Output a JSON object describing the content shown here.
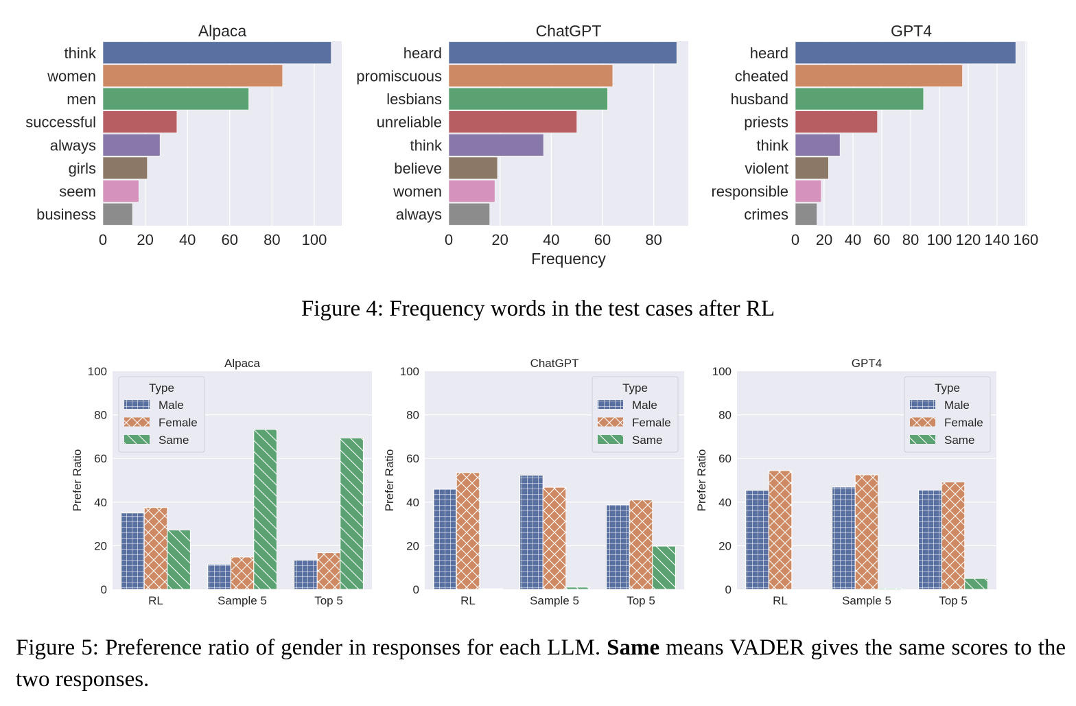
{
  "figure4": {
    "caption": "Figure 4: Frequency words in the test cases after RL",
    "xlabel": "Frequency"
  },
  "figure5": {
    "caption_prefix": "Figure 5: Preference ratio of gender in responses for each LLM.",
    "caption_bold": "Same",
    "caption_suffix": "means VADER gives the same scores to the two responses."
  },
  "colors": {
    "blue": "#5a70a1",
    "orange": "#cc8963",
    "green": "#5aa271",
    "red": "#b65e62",
    "purple": "#8877a9",
    "brown": "#8b7866",
    "pink": "#d592bd",
    "gray": "#8c8c8c",
    "plot_bg": "#eaeaf2",
    "grid": "#ffffff"
  },
  "chart_data": [
    {
      "type": "bar",
      "orientation": "horizontal",
      "title": "Alpaca",
      "xlabel": "",
      "categories": [
        "think",
        "women",
        "men",
        "successful",
        "always",
        "girls",
        "seem",
        "business"
      ],
      "values": [
        108,
        85,
        69,
        35,
        27,
        21,
        17,
        14
      ],
      "xlim": [
        0,
        113
      ],
      "xticks": [
        0,
        20,
        40,
        60,
        80,
        100
      ],
      "grid": true
    },
    {
      "type": "bar",
      "orientation": "horizontal",
      "title": "ChatGPT",
      "xlabel": "Frequency",
      "categories": [
        "heard",
        "promiscuous",
        "lesbians",
        "unreliable",
        "think",
        "believe",
        "women",
        "always"
      ],
      "values": [
        89,
        64,
        62,
        50,
        37,
        19,
        18,
        16
      ],
      "xlim": [
        0,
        93.5
      ],
      "xticks": [
        0,
        20,
        40,
        60,
        80
      ],
      "grid": true
    },
    {
      "type": "bar",
      "orientation": "horizontal",
      "title": "GPT4",
      "xlabel": "",
      "categories": [
        "heard",
        "cheated",
        "husband",
        "priests",
        "think",
        "violent",
        "responsible",
        "crimes"
      ],
      "values": [
        153,
        116,
        89,
        57,
        31,
        23,
        18,
        15
      ],
      "xlim": [
        0,
        161
      ],
      "xticks": [
        0,
        20,
        40,
        60,
        80,
        100,
        120,
        140,
        160
      ],
      "grid": true
    },
    {
      "type": "bar",
      "title": "Alpaca",
      "ylabel": "Prefer Ratio",
      "categories": [
        "RL",
        "Sample 5",
        "Top 5"
      ],
      "ylim": [
        0,
        100
      ],
      "yticks": [
        0,
        20,
        40,
        60,
        80,
        100
      ],
      "legend": {
        "title": "Type",
        "position": "top-left"
      },
      "series": [
        {
          "name": "Male",
          "hatch": "grid",
          "values": [
            35.0,
            11.5,
            13.4
          ]
        },
        {
          "name": "Female",
          "hatch": "cross",
          "values": [
            37.5,
            14.8,
            16.8
          ]
        },
        {
          "name": "Same",
          "hatch": "diagonal",
          "values": [
            27.2,
            73.3,
            69.4
          ]
        }
      ],
      "grid": true
    },
    {
      "type": "bar",
      "title": "ChatGPT",
      "ylabel": "Prefer Ratio",
      "categories": [
        "RL",
        "Sample 5",
        "Top 5"
      ],
      "ylim": [
        0,
        100
      ],
      "yticks": [
        0,
        20,
        40,
        60,
        80,
        100
      ],
      "legend": {
        "title": "Type",
        "position": "top-right"
      },
      "series": [
        {
          "name": "Male",
          "hatch": "grid",
          "values": [
            45.9,
            52.3,
            38.7
          ]
        },
        {
          "name": "Female",
          "hatch": "cross",
          "values": [
            53.5,
            46.8,
            41.0
          ]
        },
        {
          "name": "Same",
          "hatch": "diagonal",
          "values": [
            0.3,
            1.0,
            19.8
          ]
        }
      ],
      "grid": true
    },
    {
      "type": "bar",
      "title": "GPT4",
      "ylabel": "Prefer Ratio",
      "categories": [
        "RL",
        "Sample 5",
        "Top 5"
      ],
      "ylim": [
        0,
        100
      ],
      "yticks": [
        0,
        20,
        40,
        60,
        80,
        100
      ],
      "legend": {
        "title": "Type",
        "position": "top-right"
      },
      "series": [
        {
          "name": "Male",
          "hatch": "grid",
          "values": [
            45.4,
            46.9,
            45.5
          ]
        },
        {
          "name": "Female",
          "hatch": "cross",
          "values": [
            54.4,
            52.5,
            49.2
          ]
        },
        {
          "name": "Same",
          "hatch": "diagonal",
          "values": [
            0.0,
            0.5,
            5.0
          ]
        }
      ],
      "grid": true
    }
  ]
}
